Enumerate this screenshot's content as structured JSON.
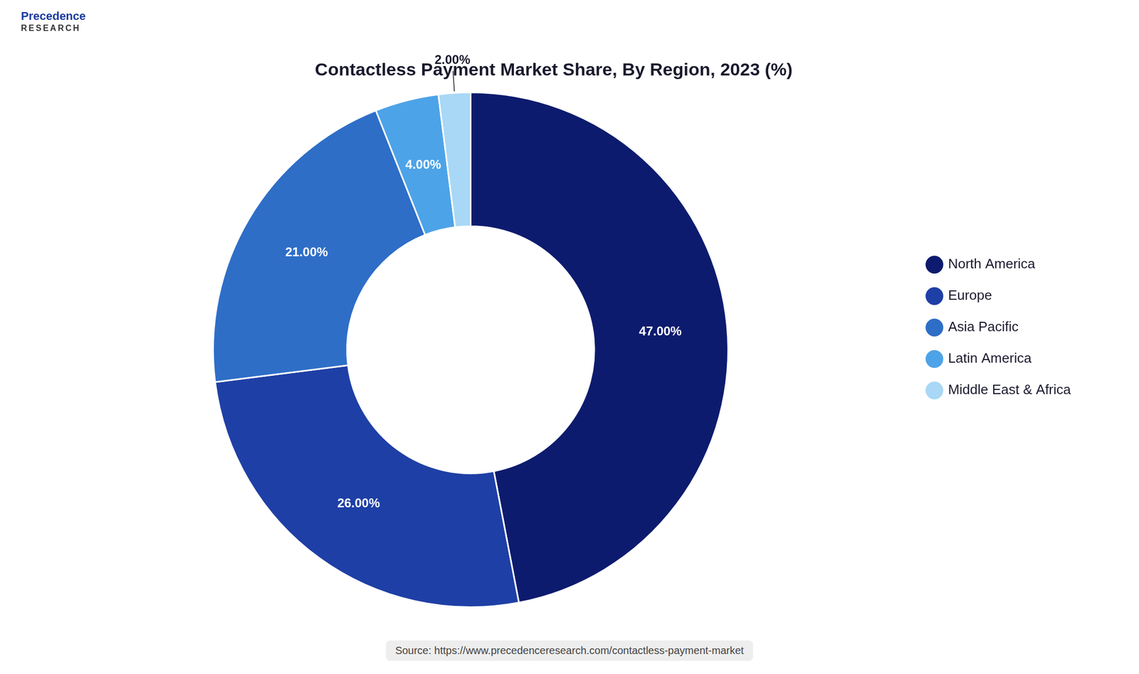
{
  "chart_data": {
    "type": "doughnut",
    "title": "Contactless Payment Market Share, By Region, 2023 (%)",
    "categories": [
      "North America",
      "Europe",
      "Asia Pacific",
      "Latin America",
      "Middle East & Africa"
    ],
    "values": [
      47,
      26,
      21,
      4,
      2
    ],
    "value_labels": [
      "47.00%",
      "26.00%",
      "21.00%",
      "4.00%",
      "2.00%"
    ],
    "colors": [
      "#0d1b6e",
      "#1e3fa5",
      "#2e6ec7",
      "#4da3e8",
      "#a8d8f5"
    ],
    "data_labels": true,
    "legend": "right",
    "annotations": [
      "Precedence",
      "RESEARCH",
      "Source: https://www.precedenceresearch.com/contactless-payment-market"
    ]
  }
}
